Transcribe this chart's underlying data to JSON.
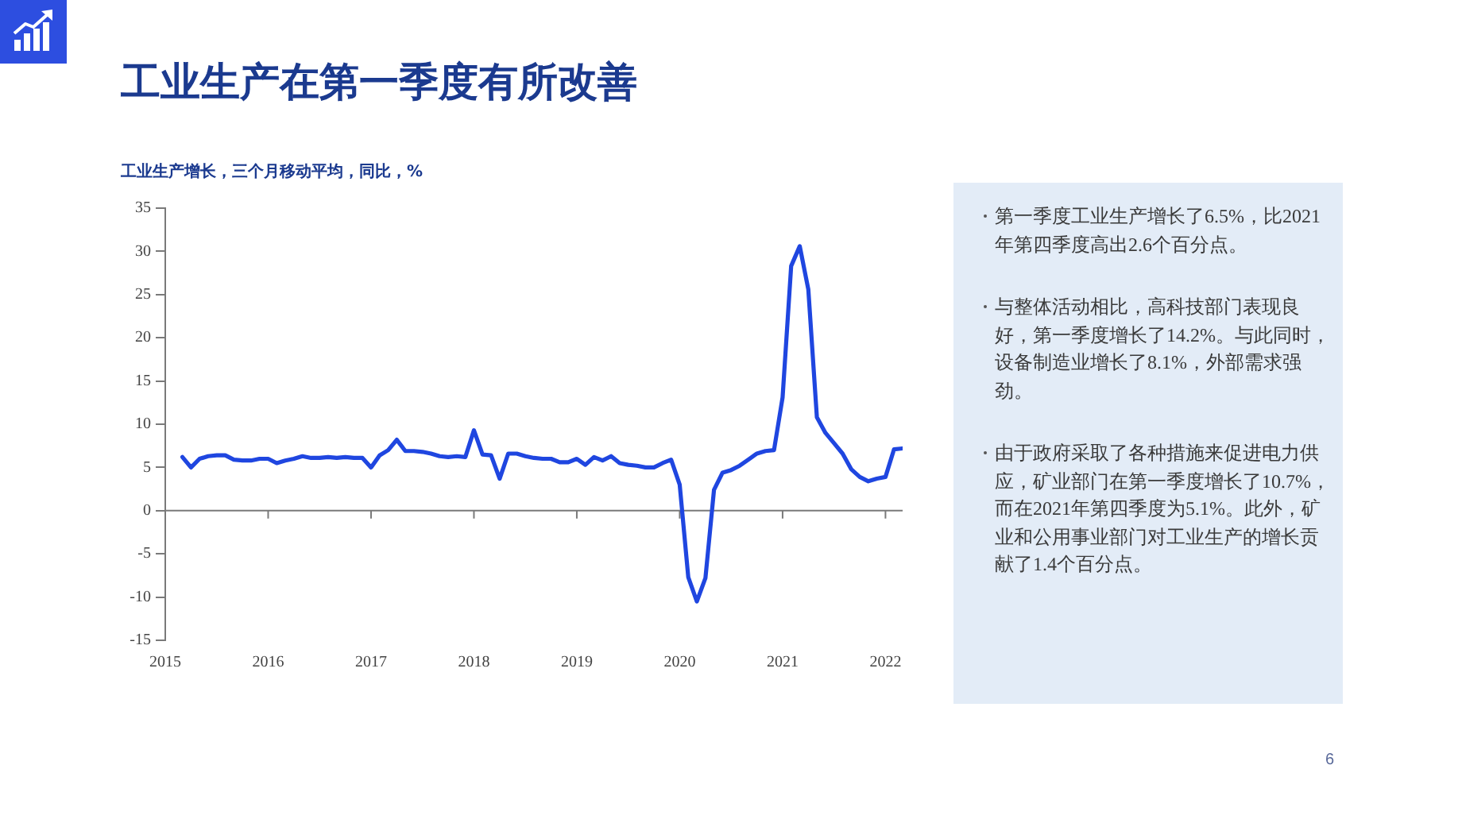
{
  "chart_data": [
    {
      "type": "line",
      "title": "工业生产在第一季度有所改善",
      "subtitle": "工业生产增长，三个月移动平均，同比，%",
      "x": [
        "2015-03",
        "2015-04",
        "2015-05",
        "2015-06",
        "2015-07",
        "2015-08",
        "2015-09",
        "2015-10",
        "2015-11",
        "2015-12",
        "2016-01",
        "2016-02",
        "2016-03",
        "2016-04",
        "2016-05",
        "2016-06",
        "2016-07",
        "2016-08",
        "2016-09",
        "2016-10",
        "2016-11",
        "2016-12",
        "2017-01",
        "2017-02",
        "2017-03",
        "2017-04",
        "2017-05",
        "2017-06",
        "2017-07",
        "2017-08",
        "2017-09",
        "2017-10",
        "2017-11",
        "2017-12",
        "2018-01",
        "2018-02",
        "2018-03",
        "2018-04",
        "2018-05",
        "2018-06",
        "2018-07",
        "2018-08",
        "2018-09",
        "2018-10",
        "2018-11",
        "2018-12",
        "2019-01",
        "2019-02",
        "2019-03",
        "2019-04",
        "2019-05",
        "2019-06",
        "2019-07",
        "2019-08",
        "2019-09",
        "2019-10",
        "2019-11",
        "2019-12",
        "2020-01",
        "2020-02",
        "2020-03",
        "2020-04",
        "2020-05",
        "2020-06",
        "2020-07",
        "2020-08",
        "2020-09",
        "2020-10",
        "2020-11",
        "2020-12",
        "2021-01",
        "2021-02",
        "2021-03",
        "2021-04",
        "2021-05",
        "2021-06",
        "2021-07",
        "2021-08",
        "2021-09",
        "2021-10",
        "2021-11",
        "2021-12",
        "2022-01",
        "2022-02",
        "2022-03"
      ],
      "values": [
        6.2,
        5.0,
        6.0,
        6.3,
        6.4,
        6.4,
        5.9,
        5.8,
        5.8,
        6.0,
        6.0,
        5.5,
        5.8,
        6.0,
        6.3,
        6.1,
        6.1,
        6.2,
        6.1,
        6.2,
        6.1,
        6.1,
        5.0,
        6.4,
        7.0,
        8.2,
        6.9,
        6.9,
        6.8,
        6.6,
        6.3,
        6.2,
        6.3,
        6.2,
        9.3,
        6.5,
        6.4,
        3.7,
        6.6,
        6.6,
        6.3,
        6.1,
        6.0,
        6.0,
        5.6,
        5.6,
        6.0,
        5.3,
        6.2,
        5.8,
        6.3,
        5.5,
        5.3,
        5.2,
        5.0,
        5.0,
        5.5,
        5.9,
        3.0,
        -7.7,
        -10.5,
        -7.8,
        2.4,
        4.4,
        4.7,
        5.2,
        5.9,
        6.6,
        6.9,
        7.0,
        13.1,
        28.3,
        30.6,
        25.6,
        10.8,
        9.0,
        7.8,
        6.6,
        4.8,
        3.9,
        3.4,
        3.7,
        3.9,
        7.1,
        7.2
      ],
      "color": "#1f46e0",
      "marker": "none",
      "line_style": "solid",
      "xlim": [
        "2015-01",
        "2022-03"
      ],
      "xticks": [
        "2015",
        "2016",
        "2017",
        "2018",
        "2019",
        "2020",
        "2021",
        "2022"
      ],
      "ylim": [
        -15,
        35
      ],
      "yticks": [
        -15,
        -10,
        -5,
        0,
        5,
        10,
        15,
        20,
        25,
        30,
        35
      ],
      "annotations": [
        "6"
      ]
    },
    {
      "type": "other",
      "annotations": [
        "第一季度工业生产增长了6.5%，比2021年第四季度高出2.6个百分点。",
        "与整体活动相比，高科技部门表现良好，第一季度增长了14.2%。与此同时，设备制造业增长了8.1%，外部需求强劲。",
        "由于政府采取了各种措施来促进电力供应，矿业部门在第一季度增长了10.7%，而在2021年第四季度为5.1%。此外，矿业和公用事业部门对工业生产的增长贡献了1.4个百分点。"
      ]
    }
  ]
}
